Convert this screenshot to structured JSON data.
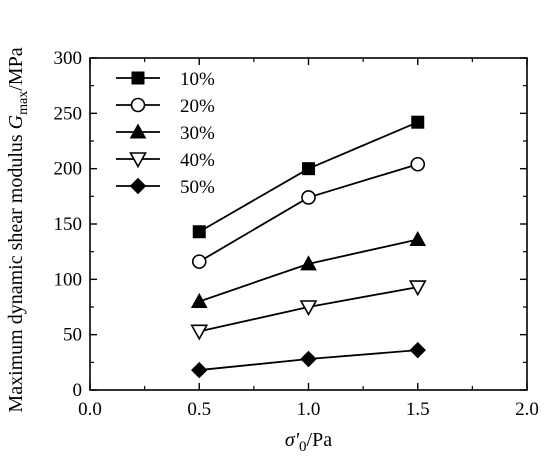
{
  "chart_data": {
    "type": "line",
    "xlabel": "σ'0/Pa",
    "ylabel": "Maximum dynamic shear modulus Gmax/MPa",
    "xlabel_parts": {
      "main": "σ'",
      "sub": "0",
      "unit": "/Pa"
    },
    "ylabel_parts": {
      "prefix": "Maximum dynamic shear modulus ",
      "var": "G",
      "sub": "max",
      "unit": "/MPa"
    },
    "xlim": [
      0.0,
      2.0
    ],
    "ylim": [
      0,
      300
    ],
    "x_ticks": [
      "0.0",
      "0.5",
      "1.0",
      "1.5",
      "2.0"
    ],
    "y_ticks": [
      "0",
      "50",
      "100",
      "150",
      "200",
      "250",
      "300"
    ],
    "x": [
      0.5,
      1.0,
      1.5
    ],
    "legend_position": "top-left",
    "grid": false,
    "series": [
      {
        "name": "10%",
        "marker": "square-filled",
        "values": [
          143,
          200,
          242
        ]
      },
      {
        "name": "20%",
        "marker": "circle-open",
        "values": [
          116,
          174,
          204
        ]
      },
      {
        "name": "30%",
        "marker": "triangle-up-filled",
        "values": [
          80,
          114,
          136
        ]
      },
      {
        "name": "40%",
        "marker": "triangle-down-open",
        "values": [
          53,
          75,
          93
        ]
      },
      {
        "name": "50%",
        "marker": "diamond-filled",
        "values": [
          18,
          28,
          36
        ]
      }
    ]
  }
}
